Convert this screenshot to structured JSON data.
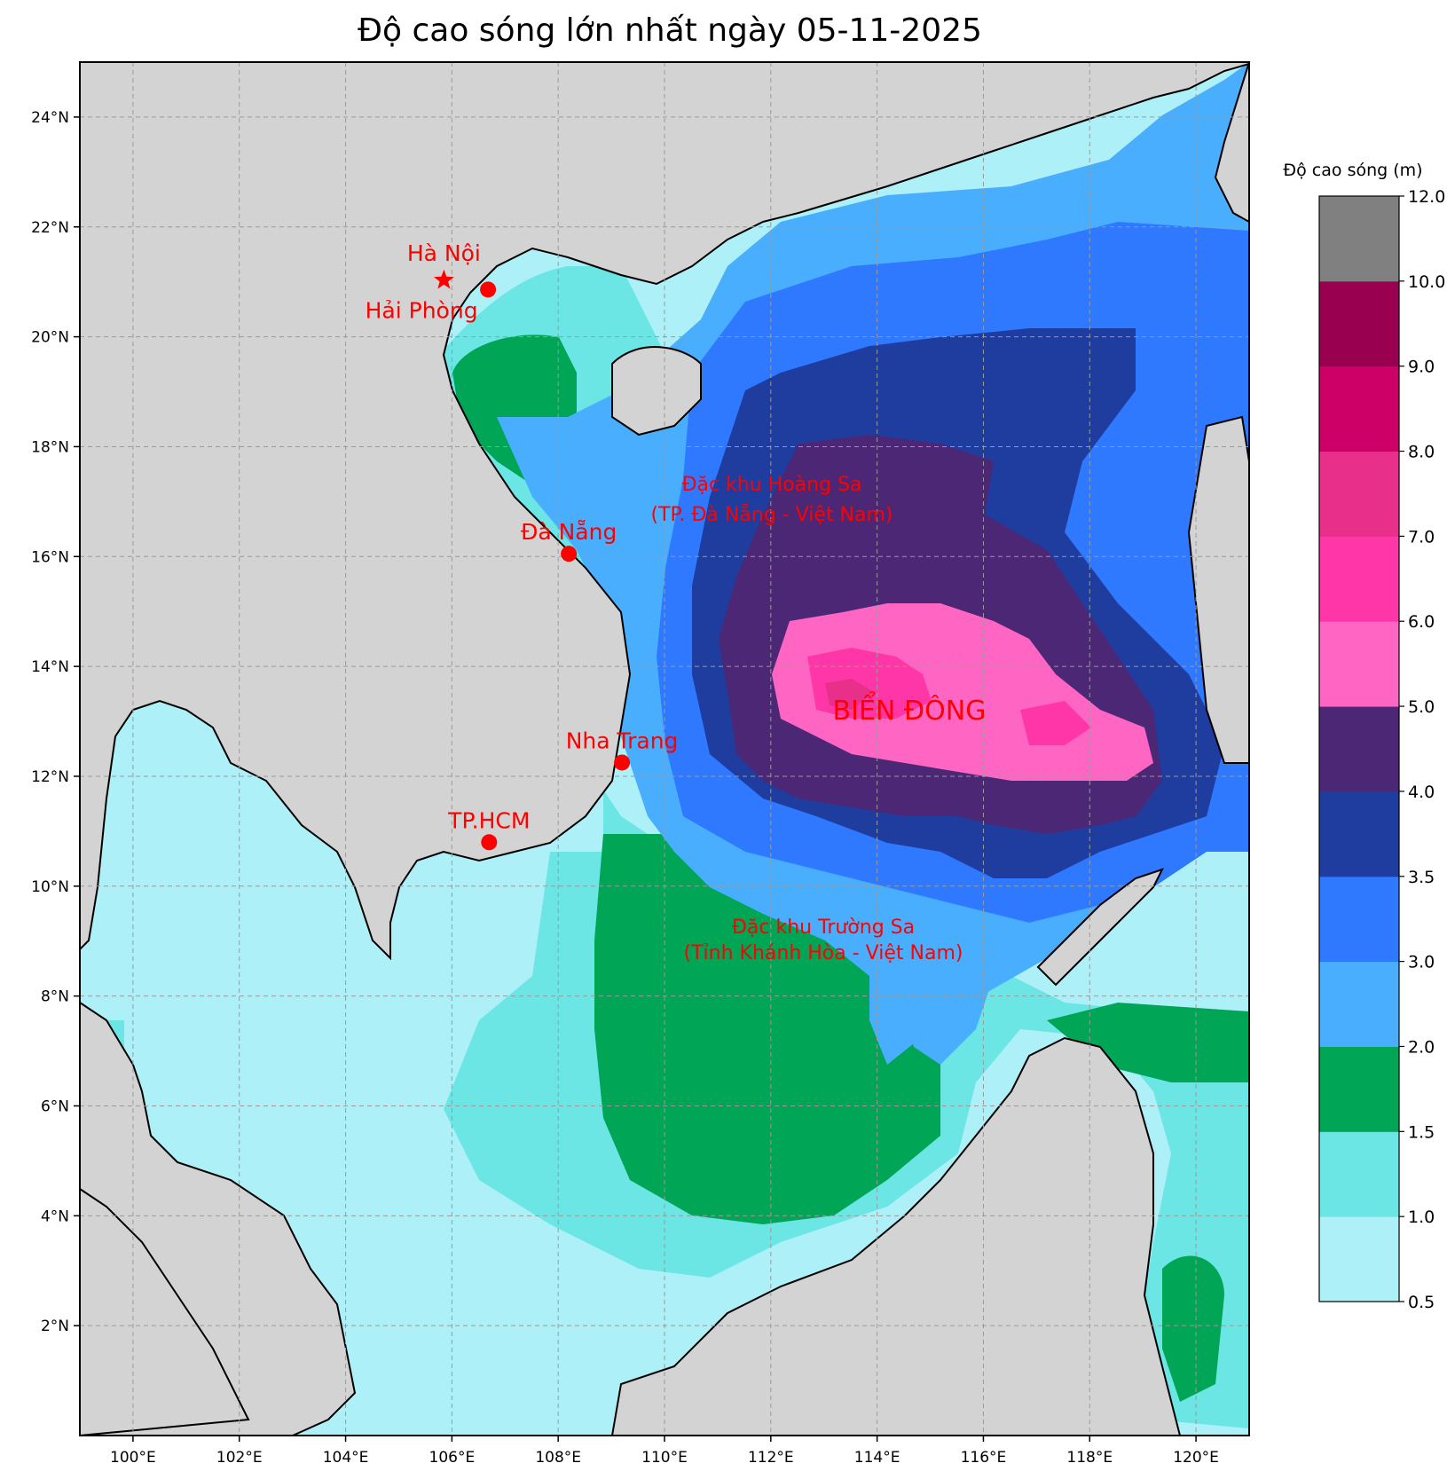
{
  "title": "Độ cao sóng lớn nhất ngày 05-11-2025",
  "axes": {
    "lon_ticks": [
      "100°E",
      "102°E",
      "104°E",
      "106°E",
      "108°E",
      "110°E",
      "112°E",
      "114°E",
      "116°E",
      "118°E",
      "120°E"
    ],
    "lat_ticks": [
      "24°N",
      "22°N",
      "20°N",
      "18°N",
      "16°N",
      "14°N",
      "12°N",
      "10°N",
      "8°N",
      "6°N",
      "4°N",
      "2°N"
    ],
    "lon_range": [
      99,
      121
    ],
    "lat_range": [
      0,
      25
    ],
    "grid": true
  },
  "colorbar": {
    "title": "Độ cao sóng (m)",
    "levels": [
      "0.5",
      "1.0",
      "1.5",
      "2.0",
      "3.0",
      "3.5",
      "4.0",
      "5.0",
      "6.0",
      "7.0",
      "8.0",
      "9.0",
      "10.0",
      "12.0"
    ],
    "colors": [
      "#aef0f7",
      "#6ce5e5",
      "#00a556",
      "#4aaeff",
      "#2e79ff",
      "#1f3d9e",
      "#4b2775",
      "#ff66c4",
      "#ff36a8",
      "#e8308a",
      "#cc0066",
      "#990050",
      "#808080"
    ]
  },
  "cities": [
    {
      "name": "Hà Nội",
      "marker": "star",
      "lon": 105.85,
      "lat": 21.03
    },
    {
      "name": "Hải Phòng",
      "marker": "dot",
      "lon": 106.68,
      "lat": 20.86
    },
    {
      "name": "Đà Nẵng",
      "marker": "dot",
      "lon": 108.2,
      "lat": 16.05
    },
    {
      "name": "Nha Trang",
      "marker": "dot",
      "lon": 109.2,
      "lat": 12.25
    },
    {
      "name": "TP.HCM",
      "marker": "dot",
      "lon": 106.7,
      "lat": 10.8
    }
  ],
  "regions": {
    "hoang_sa_line1": "Đặc khu Hoàng Sa",
    "hoang_sa_line2": "(TP. Đà Nẵng - Việt Nam)",
    "truong_sa_line1": "Đặc khu Trường Sa",
    "truong_sa_line2": "(Tỉnh Khánh Hòa - Việt Nam)",
    "sea_name": "BIỂN ĐÔNG"
  },
  "colors": {
    "land": "#d3d3d3",
    "label_red": "#ff0000"
  }
}
